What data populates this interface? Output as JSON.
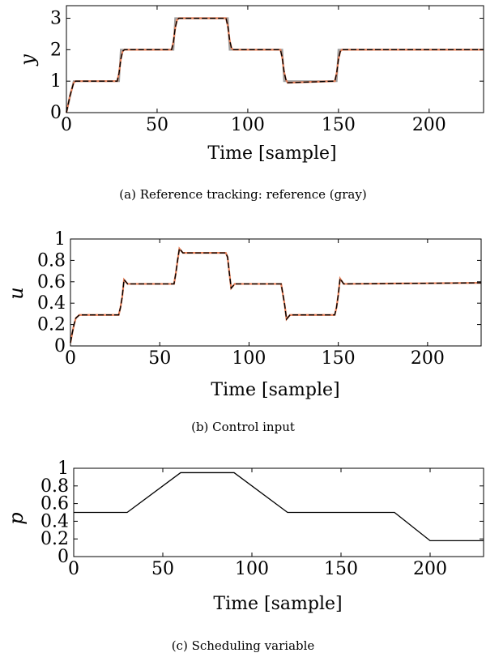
{
  "chart_data": [
    {
      "type": "line",
      "xlabel": "Time [sample]",
      "ylabel": "y",
      "caption": "(a) Reference tracking: reference (gray)",
      "xlim": [
        0,
        230
      ],
      "ylim": [
        0,
        3.4
      ],
      "xticks": [
        0,
        50,
        100,
        150,
        200
      ],
      "yticks": [
        0,
        1,
        2,
        3
      ],
      "grid": false,
      "series": [
        {
          "color": "#a0a0a0",
          "style": "solid",
          "x": [
            0,
            4,
            29,
            30,
            59,
            60,
            89,
            90,
            119,
            120,
            149,
            150,
            230
          ],
          "y": [
            0,
            1,
            1,
            2,
            2,
            3,
            3,
            2,
            2,
            1,
            1,
            2,
            2
          ]
        },
        {
          "color": "#e8815a",
          "style": "solid",
          "x": [
            0,
            2,
            4,
            5,
            28,
            29,
            30,
            31,
            32,
            58,
            59,
            60,
            61,
            62,
            88,
            89,
            90,
            91,
            92,
            118,
            119,
            120,
            121,
            122,
            148,
            149,
            150,
            151,
            152,
            230
          ],
          "y": [
            0,
            0.55,
            0.95,
            1.0,
            1.0,
            1.25,
            1.7,
            1.95,
            2.0,
            2.0,
            2.25,
            2.7,
            2.95,
            3.0,
            3.0,
            2.75,
            2.3,
            2.05,
            2.0,
            2.0,
            1.75,
            1.3,
            1.05,
            0.95,
            1.0,
            1.25,
            1.7,
            1.95,
            2.0,
            2.0
          ]
        },
        {
          "color": "#000000",
          "style": "dashed",
          "x": [
            0,
            2,
            4,
            5,
            28,
            29,
            30,
            31,
            32,
            58,
            59,
            60,
            61,
            62,
            88,
            89,
            90,
            91,
            92,
            118,
            119,
            120,
            121,
            122,
            148,
            149,
            150,
            151,
            152,
            230
          ],
          "y": [
            0,
            0.55,
            0.95,
            1.0,
            1.0,
            1.25,
            1.7,
            1.95,
            2.0,
            2.0,
            2.25,
            2.7,
            2.95,
            3.0,
            3.0,
            2.75,
            2.3,
            2.05,
            2.0,
            2.0,
            1.75,
            1.3,
            1.05,
            0.95,
            1.0,
            1.25,
            1.7,
            1.95,
            2.0,
            2.0
          ]
        }
      ]
    },
    {
      "type": "line",
      "xlabel": "Time [sample]",
      "ylabel": "u",
      "caption": "(b) Control input",
      "xlim": [
        0,
        230
      ],
      "ylim": [
        0,
        1
      ],
      "xticks": [
        0,
        50,
        100,
        150,
        200
      ],
      "yticks": [
        0,
        0.2,
        0.4,
        0.6,
        0.8,
        1
      ],
      "grid": false,
      "series": [
        {
          "color": "#e8815a",
          "style": "solid",
          "x": [
            0,
            1,
            2,
            3,
            5,
            27,
            28,
            29,
            30,
            32,
            58,
            59,
            60,
            61,
            63,
            87,
            88,
            89,
            90,
            92,
            118,
            119,
            120,
            121,
            123,
            148,
            149,
            150,
            151,
            153,
            230
          ],
          "y": [
            0.03,
            0.12,
            0.2,
            0.26,
            0.29,
            0.29,
            0.36,
            0.46,
            0.62,
            0.58,
            0.58,
            0.68,
            0.8,
            0.91,
            0.87,
            0.87,
            0.83,
            0.68,
            0.54,
            0.58,
            0.58,
            0.48,
            0.38,
            0.25,
            0.29,
            0.29,
            0.36,
            0.48,
            0.63,
            0.58,
            0.59
          ]
        },
        {
          "color": "#000000",
          "style": "dashed",
          "x": [
            0,
            1,
            2,
            3,
            5,
            27,
            28,
            29,
            30,
            32,
            58,
            59,
            60,
            61,
            63,
            87,
            88,
            89,
            90,
            92,
            118,
            119,
            120,
            121,
            123,
            148,
            149,
            150,
            151,
            153,
            230
          ],
          "y": [
            0.03,
            0.12,
            0.2,
            0.26,
            0.29,
            0.29,
            0.36,
            0.46,
            0.62,
            0.58,
            0.58,
            0.68,
            0.8,
            0.91,
            0.87,
            0.87,
            0.83,
            0.68,
            0.54,
            0.58,
            0.58,
            0.48,
            0.38,
            0.25,
            0.29,
            0.29,
            0.36,
            0.48,
            0.63,
            0.58,
            0.59
          ]
        }
      ]
    },
    {
      "type": "line",
      "xlabel": "Time [sample]",
      "ylabel": "p",
      "caption": "(c) Scheduling variable",
      "xlim": [
        0,
        230
      ],
      "ylim": [
        0,
        1
      ],
      "xticks": [
        0,
        50,
        100,
        150,
        200
      ],
      "yticks": [
        0,
        0.2,
        0.4,
        0.6,
        0.8,
        1
      ],
      "grid": false,
      "series": [
        {
          "color": "#000000",
          "style": "solid",
          "x": [
            0,
            30,
            60,
            90,
            120,
            150,
            180,
            200,
            230
          ],
          "y": [
            0.5,
            0.5,
            0.95,
            0.95,
            0.5,
            0.5,
            0.5,
            0.18,
            0.18
          ]
        }
      ]
    }
  ]
}
